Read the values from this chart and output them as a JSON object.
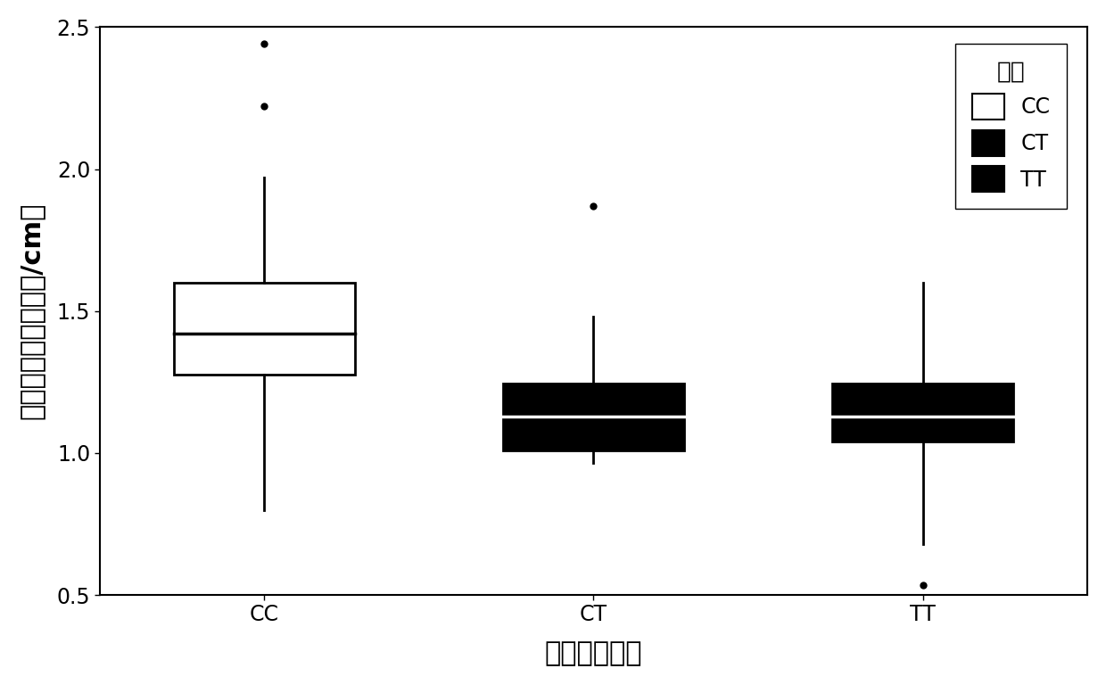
{
  "groups": [
    "CC",
    "CT",
    "TT"
  ],
  "xlabel": "等位基因类型",
  "ylabel": "主花序角果密度（个/cm）",
  "legend_title": "组别",
  "legend_labels": [
    "CC",
    "CT",
    "TT"
  ],
  "ylim": [
    0.5,
    2.5
  ],
  "yticks": [
    0.5,
    1.0,
    1.5,
    2.0,
    2.5
  ],
  "background_color": "#ffffff",
  "CC": {
    "q1": 1.275,
    "median": 1.42,
    "q3": 1.6,
    "whisker_low": 0.8,
    "whisker_high": 1.97,
    "outliers": [
      2.22,
      2.44
    ],
    "facecolor": "white",
    "edgecolor": "black"
  },
  "CT": {
    "q1": 1.01,
    "median": 1.13,
    "q3": 1.245,
    "whisker_low": 0.965,
    "whisker_high": 1.48,
    "outliers": [
      1.87
    ],
    "facecolor": "black",
    "edgecolor": "black"
  },
  "TT": {
    "q1": 1.04,
    "median": 1.13,
    "q3": 1.245,
    "whisker_low": 0.68,
    "whisker_high": 1.6,
    "outliers": [
      0.535
    ],
    "facecolor": "black",
    "edgecolor": "black"
  },
  "box_width": 0.55,
  "linewidth": 2.0,
  "median_linewidth": 2.5,
  "outlier_marker": "o",
  "outlier_size": 5,
  "font_size_axis_label": 22,
  "font_size_tick": 17,
  "font_size_legend_title": 19,
  "font_size_legend": 17
}
